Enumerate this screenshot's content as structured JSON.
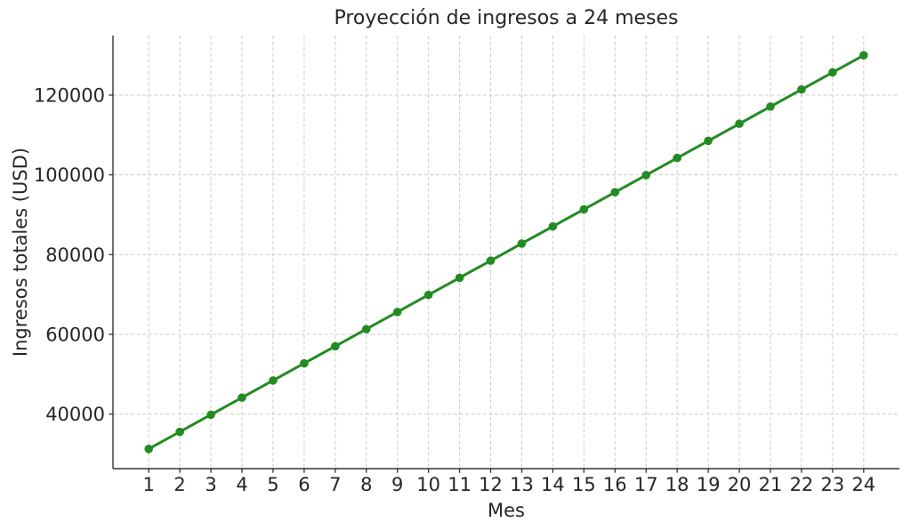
{
  "figure": {
    "background": "#ffffff"
  },
  "chart_data": {
    "type": "line",
    "title": "Proyección de ingresos a 24 meses",
    "xlabel": "Mes",
    "ylabel": "Ingresos totales (USD)",
    "x": [
      1,
      2,
      3,
      4,
      5,
      6,
      7,
      8,
      9,
      10,
      11,
      12,
      13,
      14,
      15,
      16,
      17,
      18,
      19,
      20,
      21,
      22,
      23,
      24
    ],
    "values": [
      31250,
      35543,
      39837,
      44130,
      48424,
      52717,
      57011,
      61304,
      65598,
      69891,
      74185,
      78478,
      82772,
      87065,
      91359,
      95652,
      99946,
      104239,
      108533,
      112826,
      117120,
      121413,
      125707,
      130000
    ],
    "xlim": [
      -0.15,
      25.15
    ],
    "ylim": [
      26312.5,
      134937.5
    ],
    "xticks": [
      1,
      2,
      3,
      4,
      5,
      6,
      7,
      8,
      9,
      10,
      11,
      12,
      13,
      14,
      15,
      16,
      17,
      18,
      19,
      20,
      21,
      22,
      23,
      24
    ],
    "xtick_labels": [
      "1",
      "2",
      "3",
      "4",
      "5",
      "6",
      "7",
      "8",
      "9",
      "10",
      "11",
      "12",
      "13",
      "14",
      "15",
      "16",
      "17",
      "18",
      "19",
      "20",
      "21",
      "22",
      "23",
      "24"
    ],
    "yticks": [
      40000,
      60000,
      80000,
      100000,
      120000
    ],
    "ytick_labels": [
      "40000",
      "60000",
      "80000",
      "100000",
      "120000"
    ],
    "grid": true,
    "grid_linestyle": "dashed",
    "legend": false,
    "line_color": "#228B22",
    "marker": "circle",
    "marker_radius_px": 4.8,
    "grid_color": "#cccccc",
    "text_color": "#262626",
    "spine_color": "#333333"
  }
}
